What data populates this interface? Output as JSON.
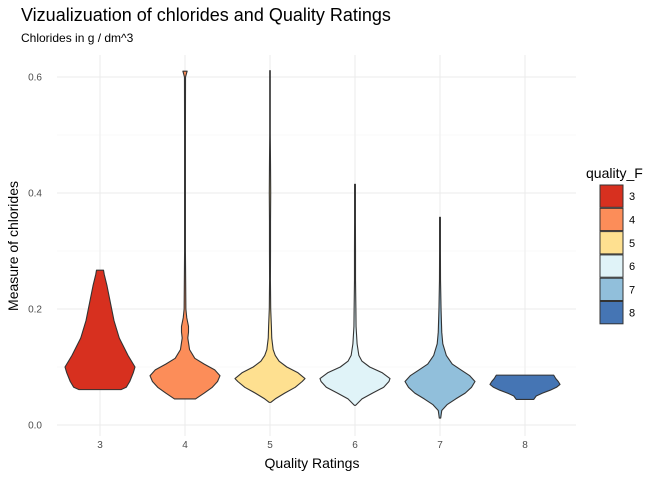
{
  "chart_data": {
    "type": "violin",
    "title": "Vizualizuation of chlorides and Quality Ratings",
    "subtitle": "Chlorides in g / dm^3",
    "xlabel": "Quality Ratings",
    "ylabel": "Measure of chlorides",
    "categories": [
      "3",
      "4",
      "5",
      "6",
      "7",
      "8"
    ],
    "yticks": [
      "0.0",
      "0.2",
      "0.4",
      "0.6"
    ],
    "ytick_values": [
      0,
      0.2,
      0.4,
      0.6
    ],
    "ylim": [
      -0.01,
      0.64
    ],
    "grid": true,
    "legend": {
      "title": "quality_F",
      "placement": "right",
      "entries": [
        "3",
        "4",
        "5",
        "6",
        "7",
        "8"
      ]
    },
    "colors": [
      "#d7301f",
      "#fc8d59",
      "#fee090",
      "#e0f3f8",
      "#91bfdb",
      "#4575b4"
    ],
    "series": [
      {
        "category": "3",
        "min": 0.061,
        "max": 0.267,
        "median": 0.091,
        "profile": [
          [
            0.061,
            0.6
          ],
          [
            0.065,
            0.75
          ],
          [
            0.075,
            0.85
          ],
          [
            0.09,
            0.95
          ],
          [
            0.1,
            1.0
          ],
          [
            0.12,
            0.8
          ],
          [
            0.15,
            0.55
          ],
          [
            0.18,
            0.4
          ],
          [
            0.21,
            0.3
          ],
          [
            0.24,
            0.2
          ],
          [
            0.26,
            0.12
          ],
          [
            0.267,
            0.1
          ]
        ]
      },
      {
        "category": "4",
        "min": 0.045,
        "max": 0.61,
        "median": 0.08,
        "profile": [
          [
            0.045,
            0.3
          ],
          [
            0.055,
            0.55
          ],
          [
            0.065,
            0.78
          ],
          [
            0.075,
            0.93
          ],
          [
            0.085,
            1.0
          ],
          [
            0.095,
            0.85
          ],
          [
            0.105,
            0.55
          ],
          [
            0.115,
            0.28
          ],
          [
            0.13,
            0.13
          ],
          [
            0.15,
            0.08
          ],
          [
            0.16,
            0.1
          ],
          [
            0.17,
            0.1
          ],
          [
            0.185,
            0.05
          ],
          [
            0.2,
            0.025
          ],
          [
            0.3,
            0.012
          ],
          [
            0.4,
            0.012
          ],
          [
            0.5,
            0.012
          ],
          [
            0.6,
            0.015
          ],
          [
            0.61,
            0.06
          ]
        ]
      },
      {
        "category": "5",
        "min": 0.039,
        "max": 0.611,
        "median": 0.081,
        "profile": [
          [
            0.039,
            0.02
          ],
          [
            0.045,
            0.15
          ],
          [
            0.055,
            0.42
          ],
          [
            0.065,
            0.72
          ],
          [
            0.075,
            0.92
          ],
          [
            0.08,
            1.0
          ],
          [
            0.09,
            0.8
          ],
          [
            0.1,
            0.48
          ],
          [
            0.11,
            0.26
          ],
          [
            0.12,
            0.15
          ],
          [
            0.13,
            0.09
          ],
          [
            0.15,
            0.05
          ],
          [
            0.17,
            0.04
          ],
          [
            0.2,
            0.02
          ],
          [
            0.25,
            0.012
          ],
          [
            0.3,
            0.015
          ],
          [
            0.35,
            0.015
          ],
          [
            0.4,
            0.02
          ],
          [
            0.45,
            0.015
          ],
          [
            0.5,
            0.008
          ],
          [
            0.55,
            0.008
          ],
          [
            0.611,
            0.008
          ]
        ]
      },
      {
        "category": "6",
        "min": 0.034,
        "max": 0.415,
        "median": 0.078,
        "profile": [
          [
            0.034,
            0.02
          ],
          [
            0.045,
            0.2
          ],
          [
            0.055,
            0.5
          ],
          [
            0.065,
            0.82
          ],
          [
            0.075,
            0.97
          ],
          [
            0.08,
            1.0
          ],
          [
            0.09,
            0.78
          ],
          [
            0.1,
            0.42
          ],
          [
            0.11,
            0.2
          ],
          [
            0.12,
            0.11
          ],
          [
            0.14,
            0.06
          ],
          [
            0.17,
            0.03
          ],
          [
            0.2,
            0.025
          ],
          [
            0.25,
            0.015
          ],
          [
            0.3,
            0.015
          ],
          [
            0.35,
            0.012
          ],
          [
            0.4,
            0.012
          ],
          [
            0.415,
            0.012
          ]
        ]
      },
      {
        "category": "7",
        "min": 0.012,
        "max": 0.358,
        "median": 0.073,
        "profile": [
          [
            0.012,
            0.02
          ],
          [
            0.025,
            0.05
          ],
          [
            0.035,
            0.2
          ],
          [
            0.045,
            0.45
          ],
          [
            0.055,
            0.72
          ],
          [
            0.065,
            0.9
          ],
          [
            0.075,
            1.0
          ],
          [
            0.085,
            0.85
          ],
          [
            0.095,
            0.6
          ],
          [
            0.105,
            0.35
          ],
          [
            0.12,
            0.18
          ],
          [
            0.14,
            0.08
          ],
          [
            0.16,
            0.05
          ],
          [
            0.2,
            0.03
          ],
          [
            0.25,
            0.015
          ],
          [
            0.3,
            0.012
          ],
          [
            0.358,
            0.012
          ]
        ]
      },
      {
        "category": "8",
        "min": 0.044,
        "max": 0.086,
        "median": 0.07,
        "profile": [
          [
            0.044,
            0.25
          ],
          [
            0.05,
            0.32
          ],
          [
            0.055,
            0.5
          ],
          [
            0.06,
            0.72
          ],
          [
            0.065,
            0.9
          ],
          [
            0.07,
            1.0
          ],
          [
            0.075,
            0.95
          ],
          [
            0.08,
            0.88
          ],
          [
            0.086,
            0.82
          ]
        ]
      }
    ]
  }
}
